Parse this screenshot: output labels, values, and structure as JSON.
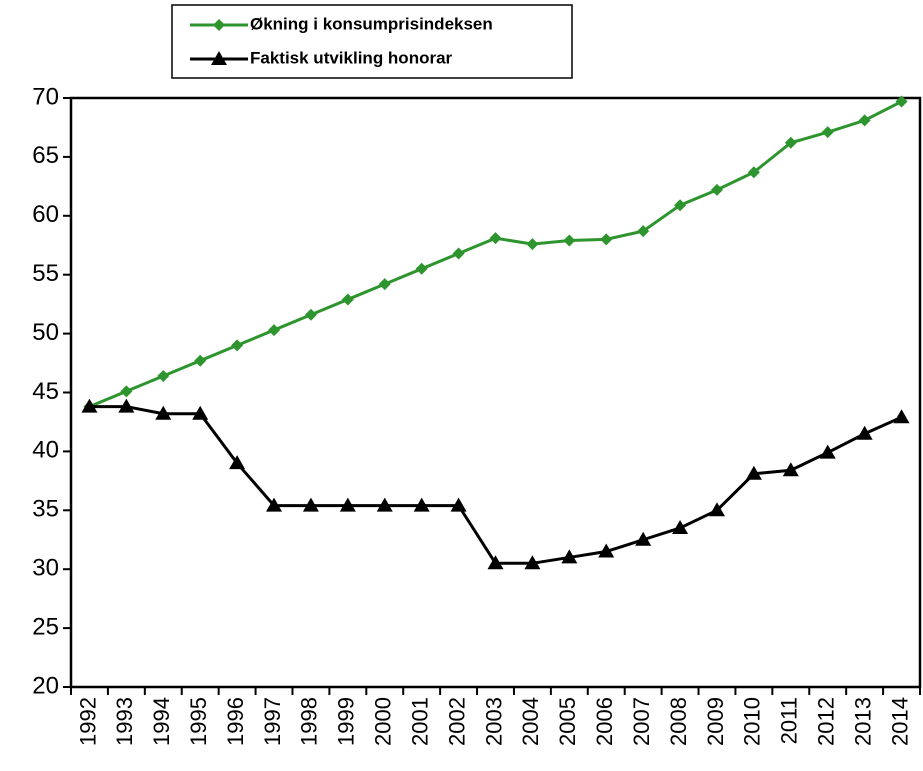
{
  "chart_data": {
    "type": "line",
    "categories": [
      "1992",
      "1993",
      "1994",
      "1995",
      "1996",
      "1997",
      "1998",
      "1999",
      "2000",
      "2001",
      "2002",
      "2003",
      "2004",
      "2005",
      "2006",
      "2007",
      "2008",
      "2009",
      "2010",
      "2011",
      "2012",
      "2013",
      "2014"
    ],
    "series": [
      {
        "name": "Økning i konsumprisindeksen",
        "color": "#2e952e",
        "marker": "diamond",
        "values": [
          43.8,
          45.1,
          46.4,
          47.7,
          49.0,
          50.3,
          51.6,
          52.9,
          54.2,
          55.5,
          56.8,
          58.1,
          57.6,
          57.9,
          58.0,
          58.7,
          60.9,
          62.2,
          63.7,
          66.2,
          67.1,
          68.1,
          69.7
        ]
      },
      {
        "name": "Faktisk utvikling honorar",
        "color": "#000000",
        "marker": "triangle",
        "values": [
          43.8,
          43.8,
          43.2,
          43.2,
          39.0,
          35.4,
          35.4,
          35.4,
          35.4,
          35.4,
          35.4,
          30.5,
          30.5,
          31.0,
          31.5,
          32.5,
          33.5,
          35.0,
          38.1,
          38.4,
          39.9,
          41.5,
          42.9
        ]
      }
    ],
    "ylim": [
      20,
      70
    ],
    "yticks": [
      20,
      25,
      30,
      35,
      40,
      45,
      50,
      55,
      60,
      65,
      70
    ],
    "grid": false,
    "legend": "top"
  }
}
